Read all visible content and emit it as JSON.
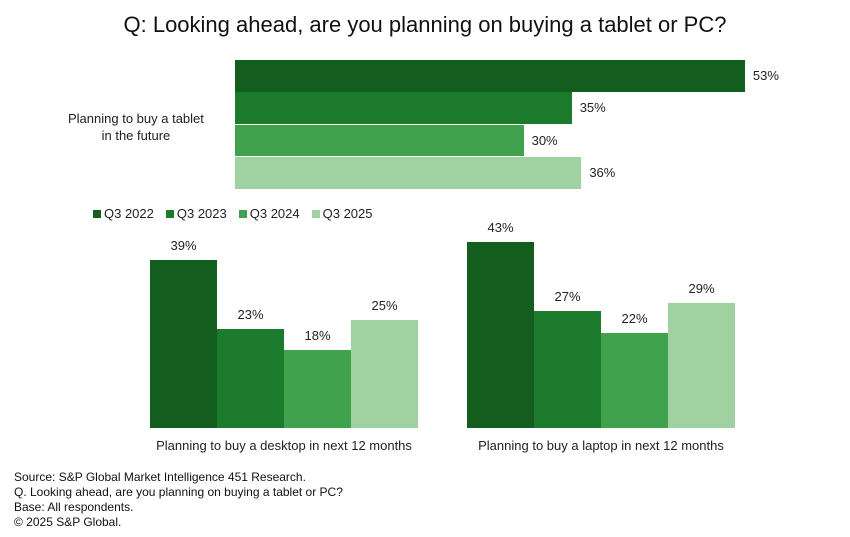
{
  "title": "Q: Looking ahead, are you planning on buying a tablet or PC?",
  "chart_data": [
    {
      "type": "bar",
      "orientation": "horizontal",
      "categories": [
        "Planning to buy a tablet in the future"
      ],
      "series": [
        {
          "name": "Q3 2022",
          "values": [
            53
          ]
        },
        {
          "name": "Q3 2023",
          "values": [
            35
          ]
        },
        {
          "name": "Q3 2024",
          "values": [
            30
          ]
        },
        {
          "name": "Q3 2025",
          "values": [
            36
          ]
        }
      ],
      "category_label": "Planning to buy a tablet\nin the future",
      "value_suffix": "%"
    },
    {
      "type": "bar",
      "categories": [
        "Planning to buy a desktop in next 12 months"
      ],
      "series": [
        {
          "name": "Q3 2022",
          "values": [
            39
          ]
        },
        {
          "name": "Q3 2023",
          "values": [
            23
          ]
        },
        {
          "name": "Q3 2024",
          "values": [
            18
          ]
        },
        {
          "name": "Q3 2025",
          "values": [
            25
          ]
        }
      ],
      "value_suffix": "%"
    },
    {
      "type": "bar",
      "categories": [
        "Planning to buy a laptop in next 12 months"
      ],
      "series": [
        {
          "name": "Q3 2022",
          "values": [
            43
          ]
        },
        {
          "name": "Q3 2023",
          "values": [
            27
          ]
        },
        {
          "name": "Q3 2024",
          "values": [
            22
          ]
        },
        {
          "name": "Q3 2025",
          "values": [
            29
          ]
        }
      ],
      "value_suffix": "%"
    }
  ],
  "legend": [
    "Q3 2022",
    "Q3 2023",
    "Q3 2024",
    "Q3 2025"
  ],
  "colors": [
    "#135e1f",
    "#1b7a2b",
    "#41a24e",
    "#9fd1a1"
  ],
  "footer": [
    "Source: S&P Global Market Intelligence 451 Research.",
    "Q. Looking ahead, are you planning on buying a tablet or PC?",
    "Base: All respondents.",
    "© 2025 S&P Global."
  ]
}
